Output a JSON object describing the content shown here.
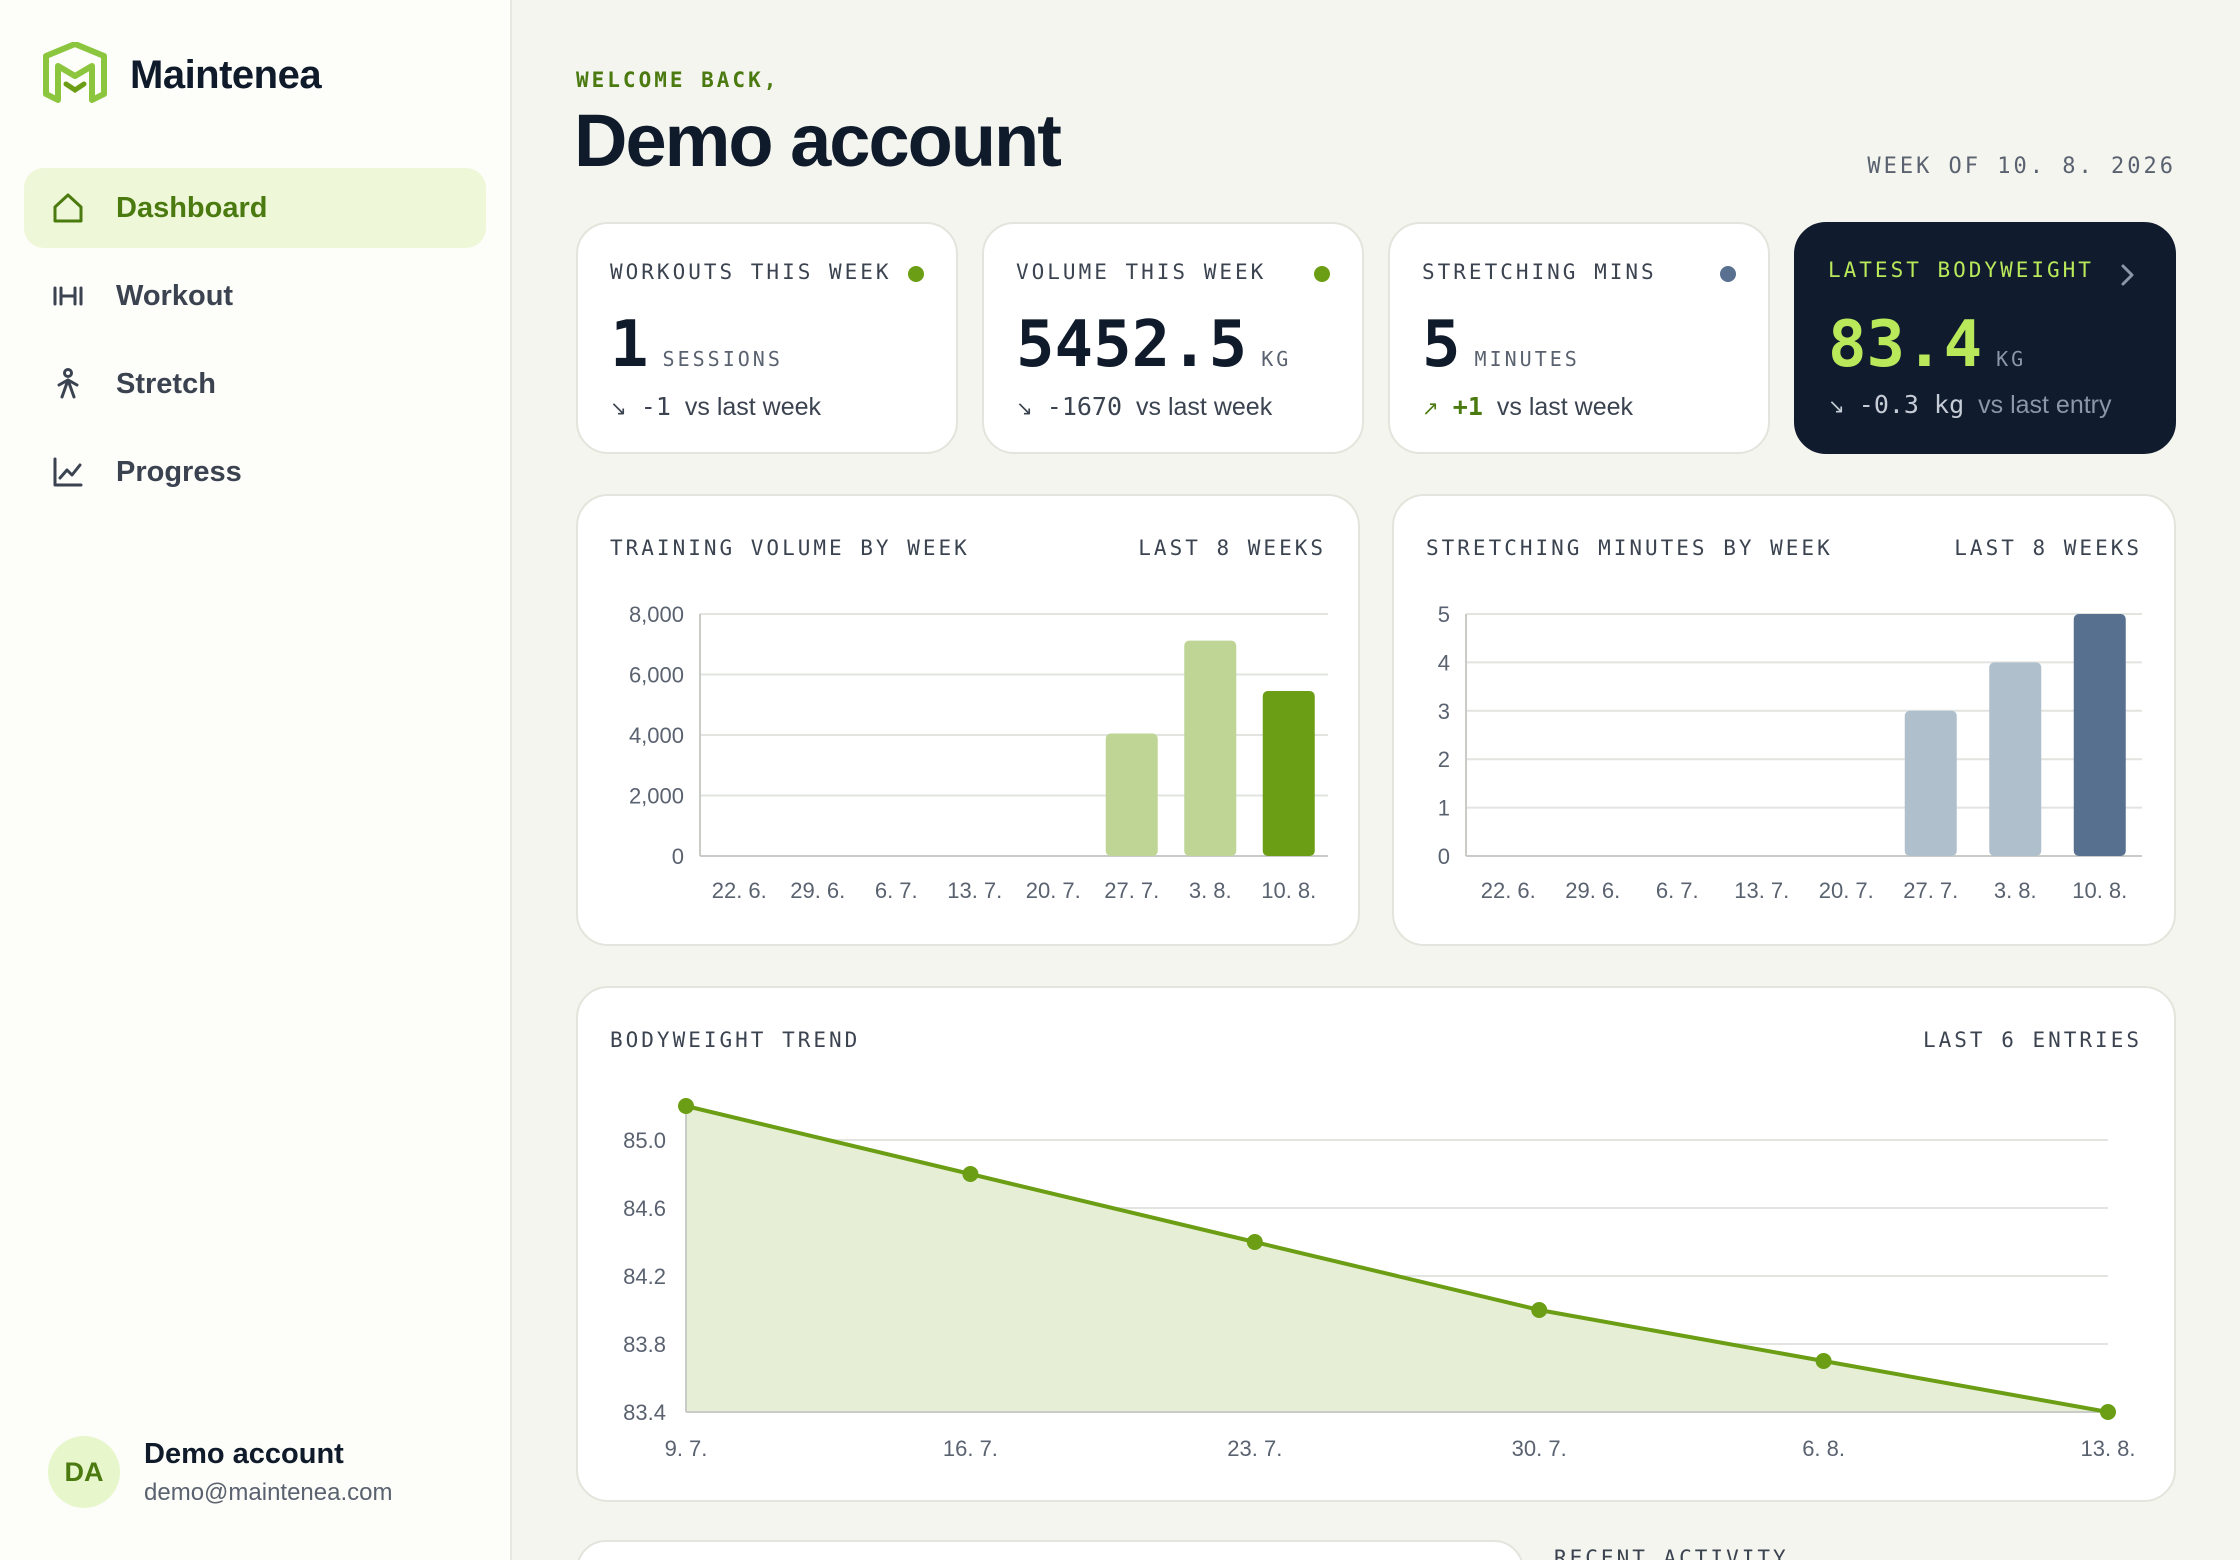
{
  "brand": {
    "name": "Maintenea"
  },
  "nav": [
    {
      "label": "Dashboard",
      "icon": "home-icon",
      "active": true
    },
    {
      "label": "Workout",
      "icon": "dumbbell-icon",
      "active": false
    },
    {
      "label": "Stretch",
      "icon": "person-stretch-icon",
      "active": false
    },
    {
      "label": "Progress",
      "icon": "line-chart-icon",
      "active": false
    }
  ],
  "user": {
    "initials": "DA",
    "name": "Demo account",
    "email": "demo@maintenea.com"
  },
  "header": {
    "welcome": "WELCOME BACK,",
    "title": "Demo account",
    "week_of": "WEEK OF 10. 8. 2026"
  },
  "kpis": [
    {
      "label": "WORKOUTS THIS WEEK",
      "value": "1",
      "unit": "SESSIONS",
      "arrow": "↘",
      "delta": "-1",
      "delta_text": "vs last week",
      "dot_color": "#6b9e14"
    },
    {
      "label": "VOLUME THIS WEEK",
      "value": "5452.5",
      "unit": "KG",
      "arrow": "↘",
      "delta": "-1670",
      "delta_text": "vs last week",
      "dot_color": "#6b9e14"
    },
    {
      "label": "STRETCHING MINS",
      "value": "5",
      "unit": "MINUTES",
      "arrow": "↗",
      "delta": "+1",
      "delta_text": "vs last week",
      "dot_color": "#5a7090"
    },
    {
      "label": "LATEST BODYWEIGHT",
      "value": "83.4",
      "unit": "KG",
      "arrow": "↘",
      "delta": "-0.3 kg",
      "delta_text": "vs last entry"
    }
  ],
  "colors": {
    "accent": "#6b9e14",
    "accent_light": "#bed595",
    "slate": "#587090",
    "slate_light": "#b0bfcc",
    "dark_card": "#101c2e"
  },
  "charts": {
    "volume": {
      "title": "TRAINING VOLUME BY WEEK",
      "range": "LAST 8 WEEKS"
    },
    "stretch": {
      "title": "STRETCHING MINUTES BY WEEK",
      "range": "LAST 8 WEEKS"
    },
    "bodyweight": {
      "title": "BODYWEIGHT TREND",
      "range": "LAST 6 ENTRIES"
    }
  },
  "chart_data": [
    {
      "type": "bar",
      "title": "TRAINING VOLUME BY WEEK",
      "categories": [
        "22. 6.",
        "29. 6.",
        "6. 7.",
        "13. 7.",
        "20. 7.",
        "27. 7.",
        "3. 8.",
        "10. 8."
      ],
      "values": [
        0,
        0,
        0,
        0,
        0,
        4050,
        7120,
        5452.5
      ],
      "yticks": [
        0,
        2000,
        4000,
        6000,
        8000
      ],
      "ylim": [
        0,
        8000
      ]
    },
    {
      "type": "bar",
      "title": "STRETCHING MINUTES BY WEEK",
      "categories": [
        "22. 6.",
        "29. 6.",
        "6. 7.",
        "13. 7.",
        "20. 7.",
        "27. 7.",
        "3. 8.",
        "10. 8."
      ],
      "values": [
        0,
        0,
        0,
        0,
        0,
        3,
        4,
        5
      ],
      "yticks": [
        0,
        1,
        2,
        3,
        4,
        5
      ],
      "ylim": [
        0,
        5
      ]
    },
    {
      "type": "area",
      "title": "BODYWEIGHT TREND",
      "x": [
        "9. 7.",
        "16. 7.",
        "23. 7.",
        "30. 7.",
        "6. 8.",
        "13. 8."
      ],
      "values": [
        85.2,
        84.8,
        84.4,
        84.0,
        83.7,
        83.4
      ],
      "yticks": [
        "83.4",
        "83.8",
        "84.2",
        "84.6",
        "85.0"
      ],
      "ylim": [
        83.4,
        85.0
      ]
    }
  ],
  "recent": {
    "label": "RECENT ACTIVITY"
  }
}
